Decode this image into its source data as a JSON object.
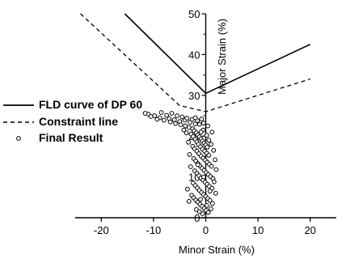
{
  "chart_data": {
    "type": "scatter",
    "xlabel": "Minor Strain (%)",
    "ylabel": "Major Strain (%)",
    "xlim": [
      -25,
      25
    ],
    "ylim": [
      0,
      50
    ],
    "x_ticks": [
      -20,
      -10,
      0,
      10,
      20
    ],
    "y_ticks": [
      0,
      10,
      20,
      30,
      40,
      50
    ],
    "grid": false,
    "legend_position": "left",
    "series": [
      {
        "name": "FLD curve of DP 60",
        "kind": "line",
        "style": "solid",
        "points": [
          [
            -15.5,
            50
          ],
          [
            0,
            30.5
          ],
          [
            20,
            42.5
          ]
        ]
      },
      {
        "name": "Constraint line",
        "kind": "line",
        "style": "dashed",
        "points": [
          [
            -24,
            50
          ],
          [
            -5,
            27.5
          ],
          [
            0,
            26
          ],
          [
            20,
            34
          ]
        ]
      },
      {
        "name": "Final Result",
        "kind": "scatter",
        "marker": "open-circle",
        "points": [
          [
            -11.0,
            25.4
          ],
          [
            -11.6,
            25.6
          ],
          [
            -9.8,
            25.0
          ],
          [
            -10.5,
            24.8
          ],
          [
            -8.5,
            25.8
          ],
          [
            -8.8,
            24.5
          ],
          [
            -7.5,
            25.1
          ],
          [
            -7.0,
            24.3
          ],
          [
            -6.5,
            25.6
          ],
          [
            -6.0,
            24.0
          ],
          [
            -5.5,
            25.0
          ],
          [
            -5.0,
            23.6
          ],
          [
            -4.5,
            24.7
          ],
          [
            -4.0,
            23.9
          ],
          [
            -3.6,
            24.4
          ],
          [
            -3.0,
            23.4
          ],
          [
            -2.6,
            24.1
          ],
          [
            -2.0,
            23.0
          ],
          [
            -1.6,
            23.8
          ],
          [
            -1.2,
            22.9
          ],
          [
            -0.8,
            24.2
          ],
          [
            -0.4,
            23.2
          ],
          [
            -9.3,
            24.1
          ],
          [
            -8.0,
            23.9
          ],
          [
            -6.8,
            23.5
          ],
          [
            -5.8,
            23.1
          ],
          [
            -4.8,
            22.8
          ],
          [
            -3.9,
            22.5
          ],
          [
            -3.2,
            22.1
          ],
          [
            -2.5,
            21.8
          ],
          [
            -2.2,
            21.3
          ],
          [
            -1.8,
            20.8
          ],
          [
            -1.5,
            20.3
          ],
          [
            -1.2,
            19.8
          ],
          [
            -0.9,
            19.3
          ],
          [
            -0.6,
            18.8
          ],
          [
            -0.3,
            18.3
          ],
          [
            0.0,
            17.8
          ],
          [
            0.3,
            17.3
          ],
          [
            -2.8,
            20.5
          ],
          [
            -2.4,
            19.9
          ],
          [
            -2.0,
            19.2
          ],
          [
            -1.7,
            18.6
          ],
          [
            -1.4,
            18.0
          ],
          [
            -1.0,
            17.4
          ],
          [
            -0.6,
            16.8
          ],
          [
            -0.2,
            16.3
          ],
          [
            0.2,
            15.8
          ],
          [
            0.6,
            15.3
          ],
          [
            -2.5,
            17.5
          ],
          [
            -2.1,
            16.9
          ],
          [
            -1.7,
            16.3
          ],
          [
            -1.3,
            15.7
          ],
          [
            -0.9,
            15.1
          ],
          [
            -0.5,
            14.6
          ],
          [
            -0.1,
            14.1
          ],
          [
            0.3,
            13.6
          ],
          [
            0.7,
            13.1
          ],
          [
            1.1,
            12.6
          ],
          [
            -2.3,
            14.5
          ],
          [
            -1.9,
            13.9
          ],
          [
            -1.5,
            13.3
          ],
          [
            -1.1,
            12.7
          ],
          [
            -0.7,
            12.1
          ],
          [
            -0.3,
            11.6
          ],
          [
            0.1,
            11.1
          ],
          [
            0.5,
            10.6
          ],
          [
            0.9,
            10.1
          ],
          [
            1.4,
            9.6
          ],
          [
            -2.1,
            11.5
          ],
          [
            -1.7,
            10.9
          ],
          [
            -1.3,
            10.3
          ],
          [
            -0.9,
            9.7
          ],
          [
            -0.5,
            9.2
          ],
          [
            -0.1,
            8.7
          ],
          [
            0.3,
            8.2
          ],
          [
            0.7,
            7.7
          ],
          [
            1.2,
            7.2
          ],
          [
            -2.4,
            8.5
          ],
          [
            -2.0,
            7.9
          ],
          [
            -1.6,
            7.3
          ],
          [
            -1.2,
            6.7
          ],
          [
            -0.8,
            6.2
          ],
          [
            -0.4,
            5.7
          ],
          [
            0.0,
            5.2
          ],
          [
            0.4,
            4.7
          ],
          [
            0.8,
            4.2
          ],
          [
            -2.7,
            5.5
          ],
          [
            -2.3,
            4.9
          ],
          [
            -1.9,
            4.3
          ],
          [
            -1.5,
            3.8
          ],
          [
            -1.1,
            3.3
          ],
          [
            -0.7,
            2.8
          ],
          [
            -0.3,
            2.3
          ],
          [
            0.1,
            1.8
          ],
          [
            0.5,
            1.3
          ],
          [
            -1.8,
            2.0
          ],
          [
            -1.2,
            1.5
          ],
          [
            -0.6,
            1.0
          ],
          [
            1.5,
            16.5
          ],
          [
            1.8,
            14.2
          ],
          [
            2.0,
            11.8
          ],
          [
            1.6,
            8.8
          ],
          [
            1.9,
            6.0
          ],
          [
            1.3,
            3.5
          ],
          [
            -3.5,
            7.0
          ],
          [
            -3.2,
            4.0
          ],
          [
            -2.9,
            12.5
          ],
          [
            -3.1,
            15.5
          ],
          [
            -3.3,
            18.5
          ],
          [
            -0.5,
            21.5
          ],
          [
            0.2,
            20.2
          ],
          [
            0.6,
            19.0
          ],
          [
            1.0,
            18.0
          ],
          [
            -4.2,
            21.5
          ],
          [
            -3.7,
            20.8
          ],
          [
            0.4,
            22.5
          ],
          [
            1.2,
            21.0
          ],
          [
            -2.0,
            24.5
          ],
          [
            -0.9,
            21.0
          ],
          [
            -1.5,
            13.0
          ],
          [
            -0.4,
            10.0
          ],
          [
            0.8,
            6.5
          ],
          [
            -1.0,
            4.5
          ],
          [
            0.2,
            3.0
          ],
          [
            1.0,
            2.2
          ]
        ]
      }
    ]
  }
}
